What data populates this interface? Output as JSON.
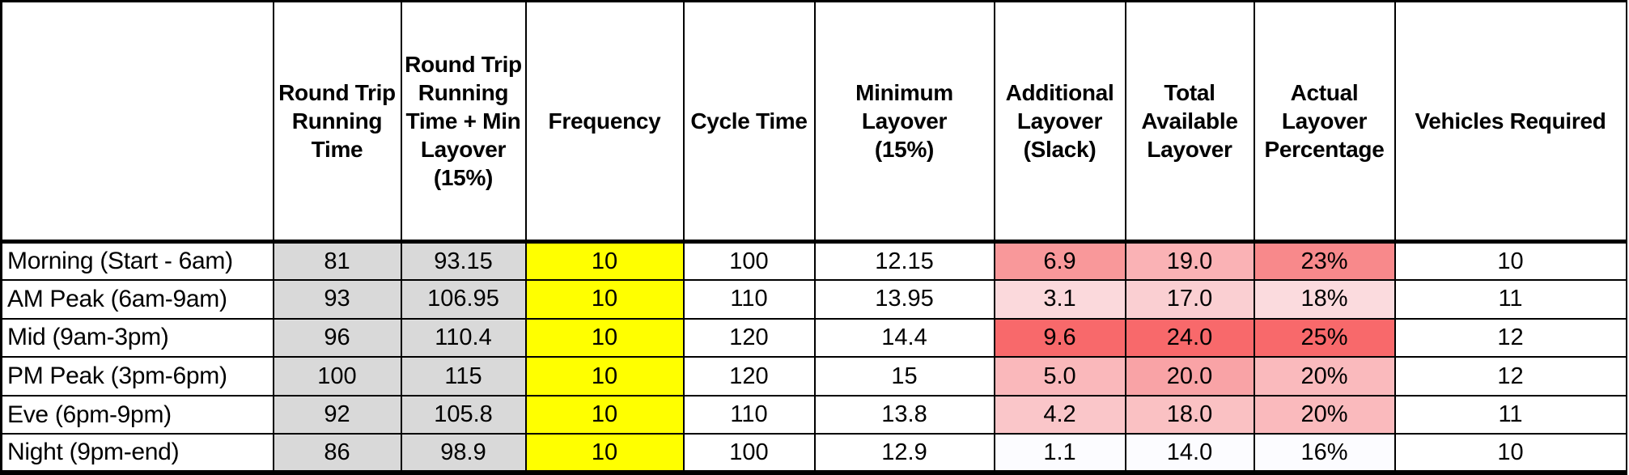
{
  "palette": {
    "gray_fill": "#D9D9D9",
    "yellow_fill": "#FFFF00",
    "scale_min_color": "#FCFCFF",
    "scale_max_color": "#F8696B",
    "border_color": "#000000"
  },
  "table": {
    "column_keys": [
      "round-trip-running-time",
      "round-trip-running-time-plus-min-layover",
      "frequency",
      "cycle-time",
      "minimum-layover",
      "additional-layover-slack",
      "total-available-layover",
      "actual-layover-percentage",
      "vehicles-required"
    ],
    "columns": [
      {
        "label": ""
      },
      {
        "label": "Round Trip\nRunning\nTime"
      },
      {
        "label": "Round Trip\nRunning\nTime + Min\nLayover\n(15%)"
      },
      {
        "label": "Frequency"
      },
      {
        "label": "Cycle Time"
      },
      {
        "label": "Minimum\nLayover\n(15%)"
      },
      {
        "label": "Additional\nLayover\n(Slack)"
      },
      {
        "label": "Total\nAvailable\nLayover"
      },
      {
        "label": "Actual\nLayover\nPercentage"
      },
      {
        "label": "Vehicles Required"
      }
    ],
    "rows": [
      {
        "label": "Morning (Start - 6am)",
        "cells": [
          {
            "value": "81",
            "bg": "#D9D9D9"
          },
          {
            "value": "93.15",
            "bg": "#D9D9D9"
          },
          {
            "value": "10",
            "bg": "#FFFF00"
          },
          {
            "value": "100",
            "bg": "#FFFFFF"
          },
          {
            "value": "12.15",
            "bg": "#FFFFFF"
          },
          {
            "value": "6.9",
            "bg": "#F9989A"
          },
          {
            "value": "19.0",
            "bg": "#FAB2B5"
          },
          {
            "value": "23%",
            "bg": "#F8898B"
          },
          {
            "value": "10",
            "bg": "#FFFFFF"
          }
        ]
      },
      {
        "label": "AM Peak (6am-9am)",
        "cells": [
          {
            "value": "93",
            "bg": "#D9D9D9"
          },
          {
            "value": "106.95",
            "bg": "#D9D9D9"
          },
          {
            "value": "10",
            "bg": "#FFFF00"
          },
          {
            "value": "110",
            "bg": "#FFFFFF"
          },
          {
            "value": "13.95",
            "bg": "#FFFFFF"
          },
          {
            "value": "3.1",
            "bg": "#FBD9DC"
          },
          {
            "value": "17.0",
            "bg": "#FACFD2"
          },
          {
            "value": "18%",
            "bg": "#FBDBDE"
          },
          {
            "value": "11",
            "bg": "#FFFFFF"
          }
        ]
      },
      {
        "label": "Mid (9am-3pm)",
        "cells": [
          {
            "value": "96",
            "bg": "#D9D9D9"
          },
          {
            "value": "110.4",
            "bg": "#D9D9D9"
          },
          {
            "value": "10",
            "bg": "#FFFF00"
          },
          {
            "value": "120",
            "bg": "#FFFFFF"
          },
          {
            "value": "14.4",
            "bg": "#FFFFFF"
          },
          {
            "value": "9.6",
            "bg": "#F8696B"
          },
          {
            "value": "24.0",
            "bg": "#F8696B"
          },
          {
            "value": "25%",
            "bg": "#F8696B"
          },
          {
            "value": "12",
            "bg": "#FFFFFF"
          }
        ]
      },
      {
        "label": "PM Peak (3pm-6pm)",
        "cells": [
          {
            "value": "100",
            "bg": "#D9D9D9"
          },
          {
            "value": "115",
            "bg": "#D9D9D9"
          },
          {
            "value": "10",
            "bg": "#FFFF00"
          },
          {
            "value": "120",
            "bg": "#FFFFFF"
          },
          {
            "value": "15",
            "bg": "#FFFFFF"
          },
          {
            "value": "5.0",
            "bg": "#FAB8BB"
          },
          {
            "value": "20.0",
            "bg": "#F9A3A6"
          },
          {
            "value": "20%",
            "bg": "#FABABD"
          },
          {
            "value": "12",
            "bg": "#FFFFFF"
          }
        ]
      },
      {
        "label": "Eve (6pm-9pm)",
        "cells": [
          {
            "value": "92",
            "bg": "#D9D9D9"
          },
          {
            "value": "105.8",
            "bg": "#D9D9D9"
          },
          {
            "value": "10",
            "bg": "#FFFF00"
          },
          {
            "value": "110",
            "bg": "#FFFFFF"
          },
          {
            "value": "13.8",
            "bg": "#FFFFFF"
          },
          {
            "value": "4.2",
            "bg": "#FAC6C9"
          },
          {
            "value": "18.0",
            "bg": "#FAC1C3"
          },
          {
            "value": "20%",
            "bg": "#FABABD"
          },
          {
            "value": "11",
            "bg": "#FFFFFF"
          }
        ]
      },
      {
        "label": "Night (9pm-end)",
        "cells": [
          {
            "value": "86",
            "bg": "#D9D9D9"
          },
          {
            "value": "98.9",
            "bg": "#D9D9D9"
          },
          {
            "value": "10",
            "bg": "#FFFF00"
          },
          {
            "value": "100",
            "bg": "#FFFFFF"
          },
          {
            "value": "12.9",
            "bg": "#FFFFFF"
          },
          {
            "value": "1.1",
            "bg": "#FCFCFF"
          },
          {
            "value": "14.0",
            "bg": "#FCFCFF"
          },
          {
            "value": "16%",
            "bg": "#FCFCFF"
          },
          {
            "value": "10",
            "bg": "#FFFFFF"
          }
        ]
      }
    ]
  }
}
